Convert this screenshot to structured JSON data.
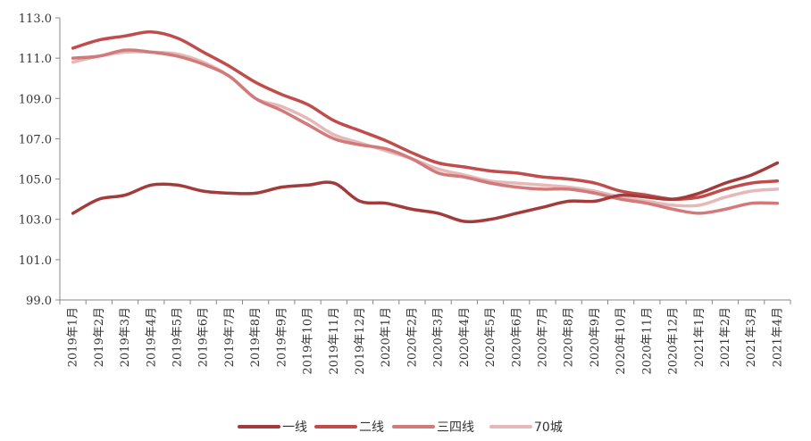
{
  "chart_data": {
    "type": "line",
    "title": "",
    "xlabel": "",
    "ylabel": "",
    "ylim": [
      99.0,
      113.0
    ],
    "yticks": [
      "99.0",
      "101.0",
      "103.0",
      "105.0",
      "107.0",
      "109.0",
      "111.0",
      "113.0"
    ],
    "grid": false,
    "legend_position": "bottom",
    "categories": [
      "2019年1月",
      "2019年2月",
      "2019年3月",
      "2019年4月",
      "2019年5月",
      "2019年6月",
      "2019年7月",
      "2019年8月",
      "2019年9月",
      "2019年10月",
      "2019年11月",
      "2019年12月",
      "2020年1月",
      "2020年2月",
      "2020年3月",
      "2020年4月",
      "2020年5月",
      "2020年6月",
      "2020年7月",
      "2020年8月",
      "2020年9月",
      "2020年10月",
      "2020年11月",
      "2020年12月",
      "2021年1月",
      "2021年2月",
      "2021年3月",
      "2021年4月"
    ],
    "series": [
      {
        "name": "一线",
        "color": "#a33b3b",
        "values": [
          103.3,
          104.0,
          104.2,
          104.7,
          104.7,
          104.4,
          104.3,
          104.3,
          104.6,
          104.7,
          104.8,
          103.9,
          103.8,
          103.5,
          103.3,
          102.9,
          103.0,
          103.3,
          103.6,
          103.9,
          103.9,
          104.2,
          104.1,
          104.0,
          104.3,
          104.8,
          105.2,
          105.8
        ]
      },
      {
        "name": "二线",
        "color": "#c04c4c",
        "values": [
          111.5,
          111.9,
          112.1,
          112.3,
          112.0,
          111.3,
          110.6,
          109.8,
          109.2,
          108.7,
          107.9,
          107.4,
          106.9,
          106.3,
          105.8,
          105.6,
          105.4,
          105.3,
          105.1,
          105.0,
          104.8,
          104.4,
          104.2,
          104.0,
          104.1,
          104.5,
          104.8,
          104.9
        ]
      },
      {
        "name": "三四线",
        "color": "#d27a7a",
        "values": [
          111.0,
          111.1,
          111.4,
          111.3,
          111.1,
          110.7,
          110.1,
          109.0,
          108.4,
          107.7,
          107.0,
          106.7,
          106.5,
          106.0,
          105.3,
          105.1,
          104.8,
          104.6,
          104.5,
          104.5,
          104.3,
          104.0,
          103.8,
          103.5,
          103.3,
          103.5,
          103.8,
          103.8
        ]
      },
      {
        "name": "70城",
        "color": "#e6b8b8",
        "values": [
          110.8,
          111.1,
          111.3,
          111.3,
          111.2,
          110.8,
          110.1,
          109.0,
          108.6,
          108.0,
          107.2,
          106.8,
          106.4,
          106.0,
          105.5,
          105.2,
          104.9,
          104.8,
          104.7,
          104.6,
          104.4,
          104.1,
          103.9,
          103.7,
          103.7,
          104.1,
          104.4,
          104.5
        ]
      }
    ]
  }
}
